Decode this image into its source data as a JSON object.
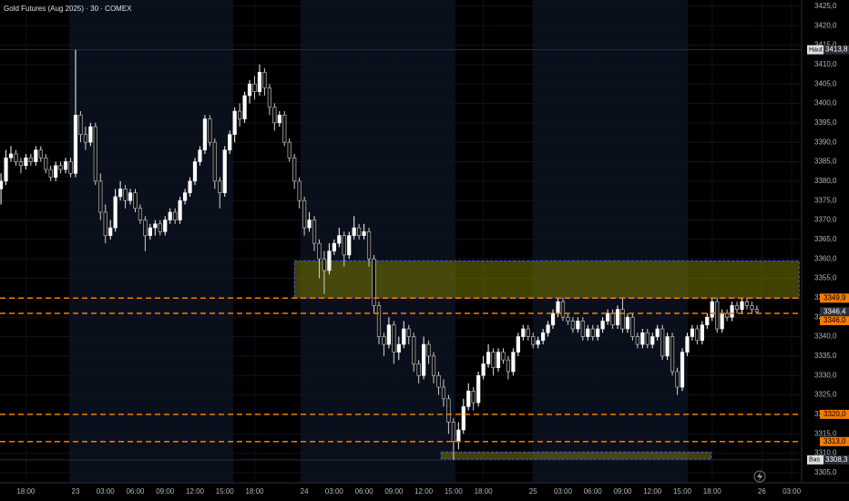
{
  "chart_data": {
    "type": "candlestick",
    "title": "Gold Futures (Aug 2025) · 30 · COMEX",
    "up_color": "#ffffff",
    "down_color": "#111111",
    "down_stroke": "#d0d0d0",
    "line_color": "#f57c00",
    "zone_fill": "rgba(120,120,0,0.55)",
    "zone_stroke": "#3d5afe",
    "grid": true,
    "xlim": [
      -0.2,
      161
    ],
    "ylim": [
      3302.4,
      3426.6
    ],
    "yticks": [
      {
        "value": 3305,
        "label": "3305,0"
      },
      {
        "value": 3310,
        "label": "3310,0"
      },
      {
        "value": 3315,
        "label": "3315,0"
      },
      {
        "value": 3320,
        "label": "3320,0"
      },
      {
        "value": 3325,
        "label": "3325,0"
      },
      {
        "value": 3330,
        "label": "3330,0"
      },
      {
        "value": 3335,
        "label": "3335,0"
      },
      {
        "value": 3340,
        "label": "3340,0"
      },
      {
        "value": 3345,
        "label": "3345,0"
      },
      {
        "value": 3350,
        "label": "3350,0"
      },
      {
        "value": 3355,
        "label": "3355,0"
      },
      {
        "value": 3360,
        "label": "3360,0"
      },
      {
        "value": 3365,
        "label": "3365,0"
      },
      {
        "value": 3370,
        "label": "3370,0"
      },
      {
        "value": 3375,
        "label": "3375,0"
      },
      {
        "value": 3380,
        "label": "3380,0"
      },
      {
        "value": 3385,
        "label": "3385,0"
      },
      {
        "value": 3390,
        "label": "3390,0"
      },
      {
        "value": 3395,
        "label": "3395,0"
      },
      {
        "value": 3400,
        "label": "3400,0"
      },
      {
        "value": 3405,
        "label": "3405,0"
      },
      {
        "value": 3410,
        "label": "3410,0"
      },
      {
        "value": 3415,
        "label": "3415,0"
      },
      {
        "value": 3420,
        "label": "3420,0"
      },
      {
        "value": 3425,
        "label": "3425,0"
      }
    ],
    "xticks": [
      {
        "value": 5,
        "label": "18:00"
      },
      {
        "value": 15,
        "label": "23"
      },
      {
        "value": 21,
        "label": "03:00"
      },
      {
        "value": 27,
        "label": "06:00"
      },
      {
        "value": 33,
        "label": "09:00"
      },
      {
        "value": 39,
        "label": "12:00"
      },
      {
        "value": 45,
        "label": "15:00"
      },
      {
        "value": 51,
        "label": "18:00"
      },
      {
        "value": 61,
        "label": "24"
      },
      {
        "value": 67,
        "label": "03:00"
      },
      {
        "value": 73,
        "label": "06:00"
      },
      {
        "value": 79,
        "label": "09:00"
      },
      {
        "value": 85,
        "label": "12:00"
      },
      {
        "value": 91,
        "label": "15:00"
      },
      {
        "value": 97,
        "label": "18:00"
      },
      {
        "value": 107,
        "label": "25"
      },
      {
        "value": 113,
        "label": "03:00"
      },
      {
        "value": 119,
        "label": "06:00"
      },
      {
        "value": 125,
        "label": "09:00"
      },
      {
        "value": 131,
        "label": "12:00"
      },
      {
        "value": 137,
        "label": "15:00"
      },
      {
        "value": 143,
        "label": "18:00"
      },
      {
        "value": 153,
        "label": "26"
      },
      {
        "value": 159,
        "label": "03:00"
      }
    ],
    "hlines": [
      {
        "value": 3349.9,
        "label": "3349,9"
      },
      {
        "value": 3346.0,
        "label": "3346,0"
      },
      {
        "value": 3320.0,
        "label": "3320,0"
      },
      {
        "value": 3313.0,
        "label": "3313,0"
      }
    ],
    "last_price": {
      "value": 3346.4,
      "label": "3346,4"
    },
    "high_marker": {
      "text": "Haut",
      "value": 3413.8,
      "label": "3413,8"
    },
    "low_marker": {
      "text": "Bas",
      "value": 3308.3,
      "label": "3308,3"
    },
    "zones": [
      {
        "x0": 59,
        "x1": 160.5,
        "top": 3359.5,
        "bottom": 3349.9
      },
      {
        "x0": 88.5,
        "x1": 142.8,
        "top": 3310.3,
        "bottom": 3308.5
      }
    ],
    "ohlc": [
      [
        3378,
        3382,
        3374,
        3380
      ],
      [
        3380,
        3388,
        3379,
        3386
      ],
      [
        3386,
        3389,
        3385,
        3387
      ],
      [
        3387,
        3388,
        3384,
        3385
      ],
      [
        3385,
        3386,
        3382,
        3384
      ],
      [
        3384,
        3387,
        3383,
        3386
      ],
      [
        3386,
        3387,
        3384,
        3385
      ],
      [
        3385,
        3389,
        3384,
        3388
      ],
      [
        3388,
        3389,
        3385,
        3386
      ],
      [
        3386,
        3387,
        3382,
        3383
      ],
      [
        3383,
        3384,
        3380,
        3381
      ],
      [
        3381,
        3385,
        3380,
        3384
      ],
      [
        3384,
        3385,
        3382,
        3383
      ],
      [
        3383,
        3386,
        3382,
        3385
      ],
      [
        3385,
        3386,
        3381,
        3382
      ],
      [
        3382,
        3413.8,
        3381,
        3397
      ],
      [
        3397,
        3398,
        3390,
        3392
      ],
      [
        3392,
        3394,
        3388,
        3390
      ],
      [
        3390,
        3395,
        3389,
        3394
      ],
      [
        3394,
        3395,
        3379,
        3380
      ],
      [
        3380,
        3382,
        3370,
        3372
      ],
      [
        3372,
        3374,
        3364,
        3366
      ],
      [
        3366,
        3370,
        3365,
        3368
      ],
      [
        3368,
        3378,
        3367,
        3376
      ],
      [
        3376,
        3380,
        3375,
        3378
      ],
      [
        3378,
        3379,
        3373,
        3375
      ],
      [
        3375,
        3378,
        3374,
        3377
      ],
      [
        3377,
        3378,
        3372,
        3373
      ],
      [
        3373,
        3374,
        3369,
        3370
      ],
      [
        3370,
        3371,
        3362,
        3366
      ],
      [
        3366,
        3369,
        3365,
        3368
      ],
      [
        3368,
        3370,
        3366,
        3369
      ],
      [
        3369,
        3370,
        3366,
        3367
      ],
      [
        3367,
        3371,
        3366,
        3370
      ],
      [
        3370,
        3373,
        3369,
        3372
      ],
      [
        3372,
        3373,
        3369,
        3370
      ],
      [
        3370,
        3376,
        3369,
        3375
      ],
      [
        3375,
        3378,
        3374,
        3377
      ],
      [
        3377,
        3381,
        3376,
        3380
      ],
      [
        3380,
        3386,
        3379,
        3385
      ],
      [
        3385,
        3389,
        3384,
        3388
      ],
      [
        3388,
        3397,
        3387,
        3396
      ],
      [
        3396,
        3397,
        3389,
        3390
      ],
      [
        3390,
        3391,
        3378,
        3380
      ],
      [
        3380,
        3381,
        3373,
        3377
      ],
      [
        3377,
        3389,
        3376,
        3388
      ],
      [
        3388,
        3393,
        3387,
        3392
      ],
      [
        3392,
        3399,
        3390,
        3398
      ],
      [
        3398,
        3400,
        3394,
        3396
      ],
      [
        3396,
        3403,
        3395,
        3402
      ],
      [
        3402,
        3406,
        3400,
        3405
      ],
      [
        3405,
        3407,
        3401,
        3403
      ],
      [
        3403,
        3410,
        3402,
        3408
      ],
      [
        3408,
        3409,
        3402,
        3404
      ],
      [
        3404,
        3405,
        3397,
        3399
      ],
      [
        3399,
        3400,
        3393,
        3395
      ],
      [
        3395,
        3398,
        3394,
        3397
      ],
      [
        3397,
        3398,
        3389,
        3390
      ],
      [
        3390,
        3391,
        3385,
        3386
      ],
      [
        3386,
        3387,
        3378,
        3380
      ],
      [
        3380,
        3381,
        3373,
        3375
      ],
      [
        3375,
        3376,
        3366,
        3368
      ],
      [
        3368,
        3372,
        3367,
        3370
      ],
      [
        3370,
        3371,
        3362,
        3364
      ],
      [
        3364,
        3365,
        3355,
        3360
      ],
      [
        3360,
        3362,
        3351,
        3357
      ],
      [
        3357,
        3364,
        3356,
        3362
      ],
      [
        3362,
        3365,
        3361,
        3364
      ],
      [
        3364,
        3368,
        3363,
        3366
      ],
      [
        3366,
        3367,
        3358,
        3361
      ],
      [
        3361,
        3367,
        3360,
        3366
      ],
      [
        3366,
        3371,
        3365,
        3368
      ],
      [
        3368,
        3369,
        3365,
        3366
      ],
      [
        3366,
        3369,
        3365,
        3367
      ],
      [
        3367,
        3368,
        3358,
        3360
      ],
      [
        3360,
        3361,
        3346,
        3348
      ],
      [
        3348,
        3349,
        3338,
        3340
      ],
      [
        3340,
        3341,
        3335,
        3338
      ],
      [
        3338,
        3345,
        3337,
        3343
      ],
      [
        3343,
        3344,
        3333,
        3336
      ],
      [
        3336,
        3340,
        3334,
        3338
      ],
      [
        3338,
        3344,
        3337,
        3342
      ],
      [
        3342,
        3343,
        3338,
        3340
      ],
      [
        3340,
        3341,
        3331,
        3333
      ],
      [
        3333,
        3334,
        3328,
        3330
      ],
      [
        3330,
        3340,
        3329,
        3338
      ],
      [
        3338,
        3339,
        3333,
        3335
      ],
      [
        3335,
        3336,
        3328,
        3330
      ],
      [
        3330,
        3331,
        3325,
        3327
      ],
      [
        3327,
        3329,
        3322,
        3324
      ],
      [
        3324,
        3325,
        3315,
        3318
      ],
      [
        3318,
        3319,
        3308.3,
        3313
      ],
      [
        3313,
        3318,
        3311,
        3316
      ],
      [
        3316,
        3324,
        3315,
        3322
      ],
      [
        3322,
        3328,
        3321,
        3326
      ],
      [
        3326,
        3327,
        3321,
        3323
      ],
      [
        3323,
        3331,
        3322,
        3330
      ],
      [
        3330,
        3335,
        3329,
        3333
      ],
      [
        3333,
        3338,
        3332,
        3336
      ],
      [
        3336,
        3337,
        3330,
        3332
      ],
      [
        3332,
        3337,
        3331,
        3336
      ],
      [
        3336,
        3337,
        3333,
        3334
      ],
      [
        3334,
        3335,
        3329,
        3331
      ],
      [
        3331,
        3337,
        3330,
        3336
      ],
      [
        3336,
        3341,
        3335,
        3340
      ],
      [
        3340,
        3343,
        3339,
        3342
      ],
      [
        3342,
        3343,
        3339,
        3340
      ],
      [
        3340,
        3341,
        3337,
        3338
      ],
      [
        3338,
        3340,
        3337,
        3339
      ],
      [
        3339,
        3342,
        3338,
        3341
      ],
      [
        3341,
        3344,
        3340,
        3343
      ],
      [
        3343,
        3347,
        3342,
        3346
      ],
      [
        3346,
        3350,
        3345,
        3349
      ],
      [
        3349,
        3350,
        3344,
        3345
      ],
      [
        3345,
        3346,
        3343,
        3344
      ],
      [
        3344,
        3345,
        3341,
        3342
      ],
      [
        3342,
        3345,
        3341,
        3344
      ],
      [
        3344,
        3345,
        3339,
        3340
      ],
      [
        3340,
        3343,
        3339,
        3342
      ],
      [
        3342,
        3343,
        3339,
        3340
      ],
      [
        3340,
        3343,
        3339,
        3342
      ],
      [
        3342,
        3345,
        3341,
        3344
      ],
      [
        3344,
        3347,
        3343,
        3346
      ],
      [
        3346,
        3347,
        3342,
        3343
      ],
      [
        3343,
        3348,
        3342,
        3347
      ],
      [
        3347,
        3350,
        3341,
        3342
      ],
      [
        3342,
        3346,
        3341,
        3345
      ],
      [
        3345,
        3346,
        3339,
        3340
      ],
      [
        3340,
        3341,
        3337,
        3338
      ],
      [
        3338,
        3342,
        3337,
        3341
      ],
      [
        3341,
        3342,
        3337,
        3338
      ],
      [
        3338,
        3341,
        3337,
        3340
      ],
      [
        3340,
        3343,
        3339,
        3342
      ],
      [
        3342,
        3343,
        3334,
        3335
      ],
      [
        3335,
        3341,
        3334,
        3340
      ],
      [
        3340,
        3341,
        3330,
        3331
      ],
      [
        3331,
        3332,
        3325,
        3327
      ],
      [
        3327,
        3337,
        3326,
        3336
      ],
      [
        3336,
        3341,
        3335,
        3340
      ],
      [
        3340,
        3343,
        3339,
        3342
      ],
      [
        3342,
        3343,
        3338,
        3339
      ],
      [
        3339,
        3344,
        3338,
        3343
      ],
      [
        3343,
        3346,
        3342,
        3345
      ],
      [
        3345,
        3350,
        3344,
        3349
      ],
      [
        3349,
        3350,
        3341,
        3342
      ],
      [
        3342,
        3347,
        3341,
        3346
      ],
      [
        3346,
        3347,
        3344,
        3345
      ],
      [
        3345,
        3349,
        3344,
        3348
      ],
      [
        3348,
        3349,
        3346,
        3347
      ],
      [
        3347,
        3350,
        3346,
        3349
      ],
      [
        3349,
        3350,
        3347,
        3348
      ],
      [
        3348,
        3349,
        3346,
        3347
      ],
      [
        3347,
        3348,
        3346,
        3346.4
      ]
    ]
  }
}
